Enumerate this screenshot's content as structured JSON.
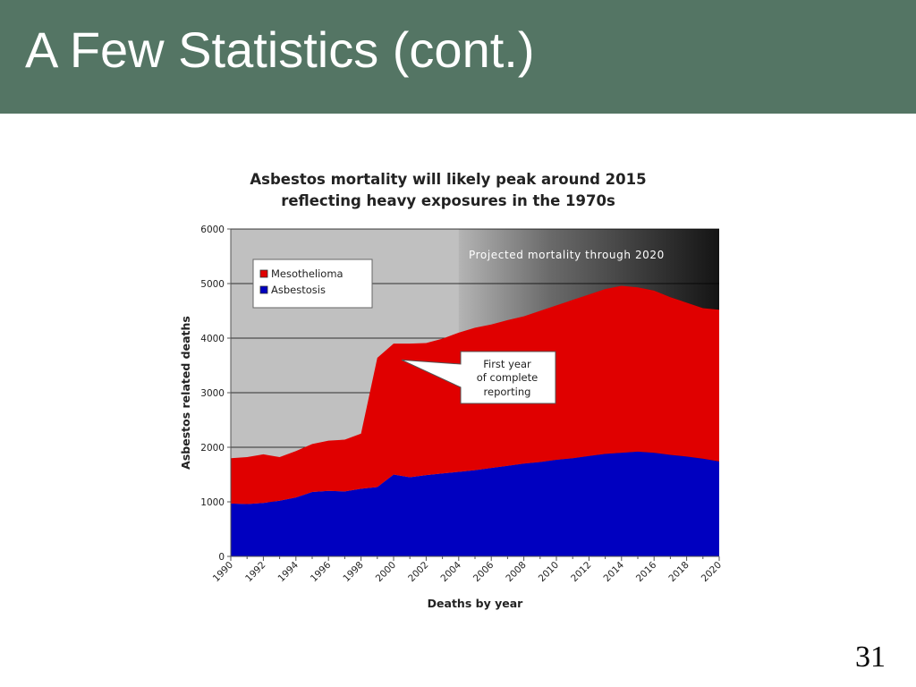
{
  "slide": {
    "title": "A Few Statistics (cont.)",
    "page_number": "31",
    "header_color": "#547564"
  },
  "chart_data": {
    "type": "area",
    "stacked": true,
    "title_lines": [
      "Asbestos mortality will likely peak around 2015",
      "reflecting heavy exposures in the 1970s"
    ],
    "xlabel": "Deaths by year",
    "ylabel": "Asbestos related deaths",
    "xlim": [
      1990,
      2020
    ],
    "ylim": [
      0,
      6000
    ],
    "x_ticks": [
      1990,
      1992,
      1994,
      1996,
      1998,
      2000,
      2002,
      2004,
      2006,
      2008,
      2010,
      2012,
      2014,
      2016,
      2018,
      2020
    ],
    "y_ticks": [
      0,
      1000,
      2000,
      3000,
      4000,
      5000,
      6000
    ],
    "grid": true,
    "legend_position": "top-left",
    "projection_start": 2004,
    "projection_label": "Projected mortality through 2020",
    "annotation": {
      "lines": [
        "First year",
        "of complete",
        "reporting"
      ],
      "x": 2000.5,
      "y": 3600
    },
    "x": [
      1990,
      1991,
      1992,
      1993,
      1994,
      1995,
      1996,
      1997,
      1998,
      1999,
      2000,
      2001,
      2002,
      2003,
      2004,
      2005,
      2006,
      2007,
      2008,
      2009,
      2010,
      2011,
      2012,
      2013,
      2014,
      2015,
      2016,
      2017,
      2018,
      2019,
      2020
    ],
    "series": [
      {
        "name": "Asbestosis",
        "color": "#0000c0",
        "values": [
          970,
          960,
          980,
          1020,
          1080,
          1180,
          1200,
          1190,
          1240,
          1270,
          1500,
          1450,
          1490,
          1520,
          1550,
          1580,
          1620,
          1660,
          1700,
          1730,
          1770,
          1800,
          1840,
          1880,
          1900,
          1920,
          1900,
          1860,
          1830,
          1790,
          1740
        ]
      },
      {
        "name": "Mesothelioma",
        "color": "#e00000",
        "values": [
          830,
          860,
          890,
          800,
          850,
          880,
          920,
          950,
          1010,
          2370,
          2400,
          2450,
          2420,
          2470,
          2550,
          2610,
          2630,
          2670,
          2700,
          2770,
          2830,
          2900,
          2960,
          3020,
          3060,
          3010,
          2970,
          2890,
          2820,
          2760,
          2780
        ]
      }
    ]
  }
}
